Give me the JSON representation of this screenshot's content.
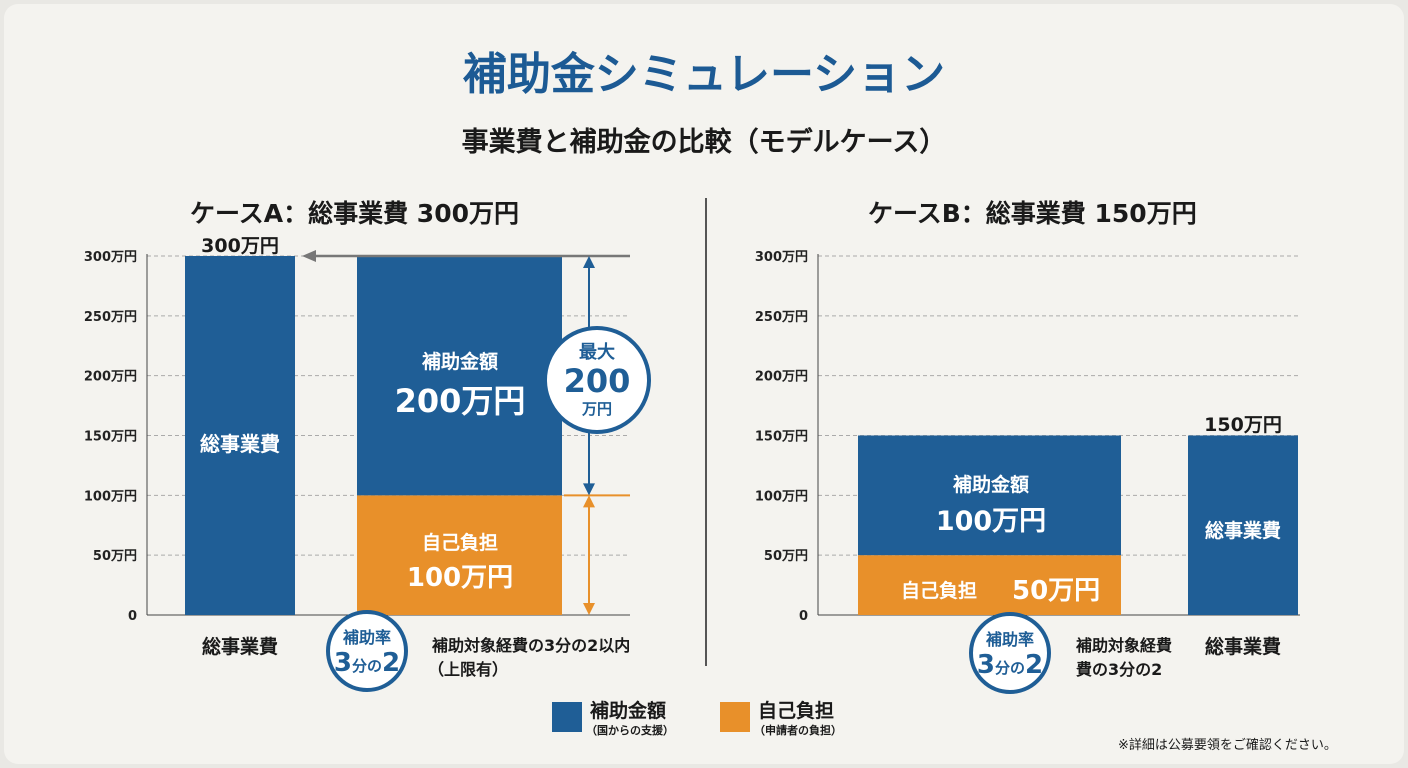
{
  "title": "補助金シミュレーション",
  "subtitle": "事業費と補助金の比較（モデルケース）",
  "colors": {
    "subsidy": "#1f5e96",
    "self": "#e8902a",
    "title": "#1c5a94"
  },
  "chart_data": [
    {
      "type": "bar",
      "title": "ケースA：総事業費 300万円",
      "ylim": [
        0,
        300
      ],
      "grid": true,
      "yticks": [
        "0",
        "50万円",
        "100万円",
        "150万円",
        "200万円",
        "250万円",
        "300万円"
      ],
      "categories": [
        "総事業費",
        "補助対象経費"
      ],
      "bars": [
        {
          "category": "総事業費",
          "label": "総事業費",
          "value": 300,
          "top_label": "300万円"
        },
        {
          "category": "補助対象経費",
          "stack": [
            {
              "name": "自己負担",
              "value": 100,
              "label": "自己負担",
              "amount": "100万円"
            },
            {
              "name": "補助金額",
              "value": 200,
              "label": "補助金額",
              "amount": "200万円"
            }
          ]
        }
      ],
      "max_badge": {
        "line1": "最大",
        "line2": "200",
        "line3": "万円"
      },
      "rate_badge": {
        "line1": "補助率",
        "num1": "3",
        "mid": "分の",
        "num2": "2"
      },
      "note": [
        "補助対象経費の3分の2以内",
        "（上限有）"
      ]
    },
    {
      "type": "bar",
      "title": "ケースB：総事業費 150万円",
      "ylim": [
        0,
        300
      ],
      "grid": true,
      "yticks": [
        "0",
        "50万円",
        "100万円",
        "150万円",
        "200万円",
        "250万円",
        "300万円"
      ],
      "categories": [
        "補助対象経費",
        "総事業費"
      ],
      "bars": [
        {
          "category": "補助対象経費",
          "stack": [
            {
              "name": "自己負担",
              "value": 50,
              "label": "自己負担",
              "amount": "50万円"
            },
            {
              "name": "補助金額",
              "value": 100,
              "label": "補助金額",
              "amount": "100万円"
            }
          ]
        },
        {
          "category": "総事業費",
          "label": "総事業費",
          "value": 150,
          "top_label": "150万円"
        }
      ],
      "rate_badge": {
        "line1": "補助率",
        "num1": "3",
        "mid": "分の",
        "num2": "2"
      },
      "note": [
        "補助対象経費",
        "費の3分の2"
      ]
    }
  ],
  "legend": [
    {
      "label": "補助金額",
      "sub": "（国からの支援）"
    },
    {
      "label": "自己負担",
      "sub": "（申請者の負担）"
    }
  ],
  "footnote": "※詳細は公募要領をご確認ください。"
}
